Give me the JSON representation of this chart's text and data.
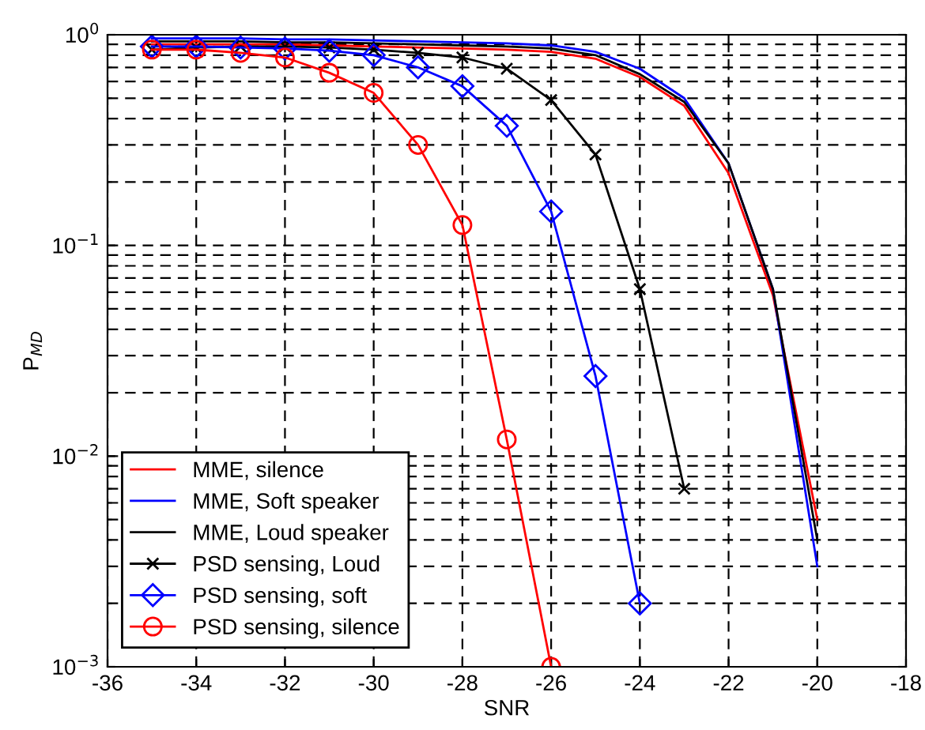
{
  "chart_data": {
    "type": "line",
    "xlabel": "SNR",
    "ylabel": "P$_{MD}$",
    "log": "y",
    "grid": true,
    "legend": "bottom left",
    "xlim": [
      -36,
      -18
    ],
    "xticks": [
      -36,
      -34,
      -32,
      -30,
      -28,
      -26,
      -24,
      -22,
      -20,
      -18
    ],
    "ylim": [
      0.001,
      1
    ],
    "yticks": [
      {
        "value": 0.001,
        "label": "10$^{−3}$"
      },
      {
        "value": 0.01,
        "label": "10$^{−2}$"
      },
      {
        "value": 0.1,
        "label": "10$^{−1}$"
      },
      {
        "value": 1,
        "label": "10$^{0}$"
      }
    ],
    "series": [
      {
        "name": "MME, silence",
        "color": "#ff0000",
        "marker": "none",
        "x": [
          -35,
          -34,
          -33,
          -32,
          -31,
          -30,
          -29,
          -28,
          -27,
          -26,
          -25,
          -24,
          -23,
          -22,
          -21,
          -20
        ],
        "values": [
          0.9,
          0.9,
          0.9,
          0.9,
          0.89,
          0.88,
          0.87,
          0.86,
          0.85,
          0.83,
          0.77,
          0.63,
          0.46,
          0.22,
          0.058,
          0.005
        ]
      },
      {
        "name": "MME, Soft speaker",
        "color": "#0000ff",
        "marker": "none",
        "x": [
          -35,
          -34,
          -33,
          -32,
          -31,
          -30,
          -29,
          -28,
          -27,
          -26,
          -25,
          -24,
          -23,
          -22,
          -21,
          -20
        ],
        "values": [
          0.96,
          0.96,
          0.96,
          0.95,
          0.95,
          0.94,
          0.93,
          0.92,
          0.91,
          0.89,
          0.83,
          0.69,
          0.5,
          0.245,
          0.062,
          0.003
        ]
      },
      {
        "name": "MME, Loud speaker",
        "color": "#000000",
        "marker": "none",
        "x": [
          -35,
          -34,
          -33,
          -32,
          -31,
          -30,
          -29,
          -28,
          -27,
          -26,
          -25,
          -24,
          -23,
          -22,
          -21,
          -20
        ],
        "values": [
          0.93,
          0.93,
          0.93,
          0.92,
          0.92,
          0.91,
          0.9,
          0.89,
          0.88,
          0.86,
          0.8,
          0.65,
          0.48,
          0.245,
          0.062,
          0.004
        ]
      },
      {
        "name": "PSD sensing, Loud",
        "color": "#000000",
        "marker": "cross",
        "x": [
          -35,
          -34,
          -33,
          -32,
          -31,
          -30,
          -29,
          -28,
          -27,
          -26,
          -25,
          -24,
          -23
        ],
        "values": [
          0.85,
          0.87,
          0.88,
          0.88,
          0.87,
          0.85,
          0.82,
          0.78,
          0.69,
          0.49,
          0.27,
          0.062,
          0.007
        ]
      },
      {
        "name": "PSD sensing, soft",
        "color": "#0000ff",
        "marker": "diamond",
        "x": [
          -35,
          -34,
          -33,
          -32,
          -31,
          -30,
          -29,
          -28,
          -27,
          -26,
          -25,
          -24
        ],
        "values": [
          0.88,
          0.88,
          0.87,
          0.86,
          0.84,
          0.8,
          0.7,
          0.57,
          0.37,
          0.145,
          0.024,
          0.002
        ]
      },
      {
        "name": "PSD sensing, silence",
        "color": "#ff0000",
        "marker": "circle",
        "x": [
          -35,
          -34,
          -33,
          -32,
          -31,
          -30,
          -29,
          -28,
          -27,
          -26
        ],
        "values": [
          0.85,
          0.85,
          0.82,
          0.78,
          0.66,
          0.53,
          0.3,
          0.125,
          0.012,
          0.001
        ]
      }
    ]
  }
}
